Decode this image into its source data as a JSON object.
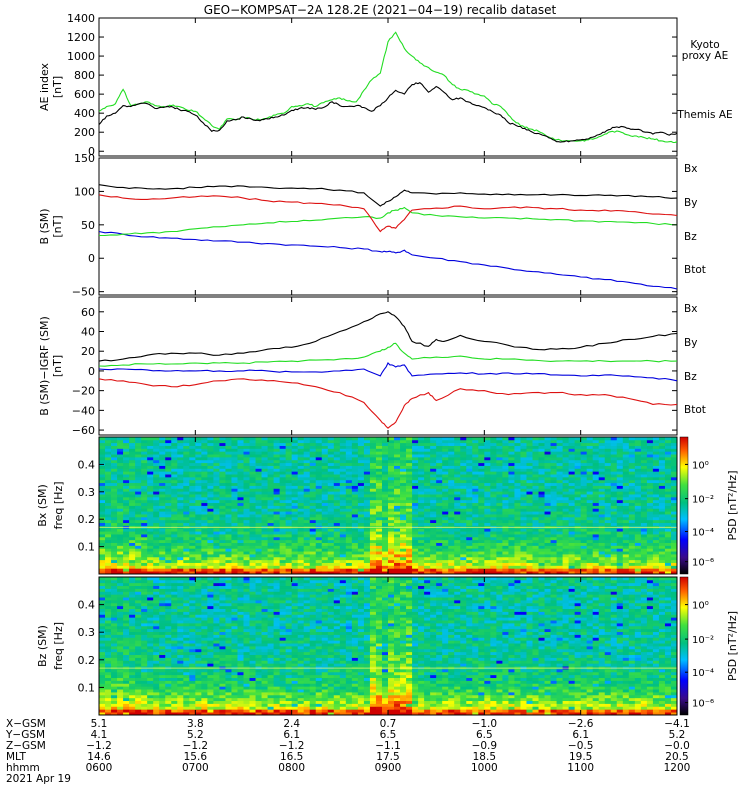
{
  "title": "GEO−KOMPSAT−2A 128.2E (2021−04−19) recalib dataset",
  "time_ticks": [
    "0600",
    "0700",
    "0800",
    "0900",
    "1000",
    "1100",
    "1200"
  ],
  "colors": {
    "black": "#000000",
    "green": "#22dd22",
    "red": "#dd1111",
    "blue": "#0000dd"
  },
  "chart_data": [
    {
      "type": "line",
      "ylabel": "AE index\n[nT]",
      "ylim": [
        -50,
        1400
      ],
      "yticks": [
        "0",
        "200",
        "400",
        "600",
        "800",
        "1000",
        "1200",
        "1400"
      ],
      "ytick_values": [
        0,
        200,
        400,
        600,
        800,
        1000,
        1200,
        1400
      ],
      "legend": [
        "Kyoto\nproxy AE",
        "Themis AE"
      ],
      "series": [
        {
          "name": "Kyoto proxy AE",
          "color": "#22dd22",
          "x": [
            6.0,
            6.08,
            6.17,
            6.25,
            6.33,
            6.42,
            6.5,
            6.58,
            6.67,
            6.75,
            6.83,
            6.92,
            7.0,
            7.08,
            7.17,
            7.25,
            7.33,
            7.42,
            7.5,
            7.58,
            7.67,
            7.75,
            7.83,
            7.92,
            8.0,
            8.08,
            8.17,
            8.25,
            8.33,
            8.42,
            8.5,
            8.58,
            8.67,
            8.75,
            8.83,
            8.92,
            9.0,
            9.08,
            9.17,
            9.25,
            9.33,
            9.42,
            9.5,
            9.58,
            9.67,
            9.75,
            9.83,
            9.92,
            10.0,
            10.08,
            10.17,
            10.25,
            10.33,
            10.42,
            10.5,
            10.58,
            10.67,
            10.75,
            10.83,
            10.92,
            11.0,
            11.08,
            11.17,
            11.25,
            11.33,
            11.42,
            11.5,
            11.58,
            11.67,
            11.75,
            11.83,
            11.92,
            12.0
          ],
          "y": [
            420,
            470,
            500,
            650,
            480,
            500,
            520,
            480,
            470,
            480,
            470,
            430,
            420,
            350,
            270,
            230,
            340,
            330,
            360,
            340,
            330,
            350,
            380,
            400,
            470,
            480,
            500,
            470,
            510,
            540,
            560,
            530,
            520,
            640,
            750,
            820,
            1150,
            1250,
            1080,
            1000,
            930,
            880,
            830,
            800,
            700,
            650,
            640,
            600,
            580,
            500,
            470,
            380,
            300,
            250,
            230,
            200,
            150,
            120,
            110,
            110,
            110,
            120,
            140,
            180,
            210,
            200,
            170,
            160,
            140,
            130,
            110,
            100,
            100
          ]
        },
        {
          "name": "Themis AE",
          "color": "#000000",
          "x": [
            6.0,
            6.08,
            6.17,
            6.25,
            6.33,
            6.42,
            6.5,
            6.58,
            6.67,
            6.75,
            6.83,
            6.92,
            7.0,
            7.08,
            7.17,
            7.25,
            7.33,
            7.42,
            7.5,
            7.58,
            7.67,
            7.75,
            7.83,
            7.92,
            8.0,
            8.08,
            8.17,
            8.25,
            8.33,
            8.42,
            8.5,
            8.58,
            8.67,
            8.75,
            8.83,
            8.92,
            9.0,
            9.08,
            9.17,
            9.25,
            9.33,
            9.42,
            9.5,
            9.58,
            9.67,
            9.75,
            9.83,
            9.92,
            10.0,
            10.08,
            10.17,
            10.25,
            10.33,
            10.42,
            10.5,
            10.58,
            10.67,
            10.75,
            10.83,
            10.92,
            11.0,
            11.08,
            11.17,
            11.25,
            11.33,
            11.42,
            11.5,
            11.58,
            11.67,
            11.75,
            11.83,
            11.92,
            12.0
          ],
          "y": [
            280,
            370,
            400,
            480,
            470,
            500,
            500,
            450,
            460,
            470,
            440,
            420,
            380,
            300,
            210,
            220,
            320,
            330,
            360,
            340,
            320,
            340,
            360,
            380,
            430,
            450,
            460,
            440,
            460,
            520,
            480,
            470,
            480,
            460,
            420,
            480,
            560,
            640,
            600,
            700,
            720,
            620,
            680,
            620,
            540,
            560,
            520,
            480,
            460,
            420,
            380,
            300,
            270,
            240,
            200,
            180,
            140,
            100,
            100,
            110,
            120,
            130,
            170,
            200,
            250,
            260,
            240,
            230,
            200,
            180,
            200,
            170,
            190
          ]
        }
      ]
    },
    {
      "type": "line",
      "ylabel": "B  (SM)\n[nT]",
      "ylim": [
        -55,
        150
      ],
      "yticks": [
        "−50",
        "0",
        "50",
        "100",
        "150"
      ],
      "ytick_values": [
        -50,
        0,
        50,
        100,
        150
      ],
      "legend": [
        "Bx",
        "By",
        "Bz",
        "Btot"
      ],
      "series": [
        {
          "name": "Bx",
          "color": "#0000dd",
          "x": [
            6.0,
            6.25,
            6.5,
            6.75,
            7.0,
            7.25,
            7.5,
            7.75,
            8.0,
            8.25,
            8.5,
            8.75,
            8.92,
            9.0,
            9.08,
            9.17,
            9.25,
            9.5,
            9.75,
            10.0,
            10.25,
            10.5,
            10.75,
            11.0,
            11.25,
            11.5,
            11.75,
            12.0
          ],
          "y": [
            40,
            36,
            32,
            30,
            28,
            26,
            24,
            22,
            20,
            18,
            16,
            14,
            10,
            10,
            8,
            12,
            5,
            0,
            -5,
            -10,
            -15,
            -20,
            -24,
            -28,
            -32,
            -36,
            -42,
            -46
          ]
        },
        {
          "name": "By",
          "color": "#22dd22",
          "x": [
            6.0,
            6.25,
            6.5,
            6.75,
            7.0,
            7.25,
            7.5,
            7.75,
            8.0,
            8.25,
            8.5,
            8.75,
            8.92,
            9.0,
            9.08,
            9.17,
            9.25,
            9.5,
            9.75,
            10.0,
            10.25,
            10.5,
            10.75,
            11.0,
            11.25,
            11.5,
            11.75,
            12.0
          ],
          "y": [
            34,
            36,
            38,
            40,
            44,
            47,
            50,
            53,
            55,
            57,
            60,
            62,
            60,
            68,
            72,
            76,
            68,
            64,
            62,
            60,
            60,
            59,
            58,
            56,
            55,
            54,
            52,
            50
          ]
        },
        {
          "name": "Bz",
          "color": "#dd1111",
          "x": [
            6.0,
            6.25,
            6.5,
            6.75,
            7.0,
            7.25,
            7.5,
            7.75,
            8.0,
            8.25,
            8.5,
            8.75,
            8.92,
            9.0,
            9.08,
            9.17,
            9.25,
            9.5,
            9.75,
            10.0,
            10.25,
            10.5,
            10.75,
            11.0,
            11.25,
            11.5,
            11.75,
            12.0
          ],
          "y": [
            95,
            90,
            88,
            90,
            92,
            93,
            90,
            86,
            84,
            82,
            80,
            74,
            40,
            48,
            45,
            58,
            72,
            75,
            78,
            74,
            76,
            76,
            74,
            72,
            72,
            70,
            66,
            64
          ]
        },
        {
          "name": "Btot",
          "color": "#000000",
          "x": [
            6.0,
            6.25,
            6.5,
            6.75,
            7.0,
            7.25,
            7.5,
            7.75,
            8.0,
            8.25,
            8.5,
            8.75,
            8.92,
            9.0,
            9.08,
            9.17,
            9.25,
            9.5,
            9.75,
            10.0,
            10.25,
            10.5,
            10.75,
            11.0,
            11.25,
            11.5,
            11.75,
            12.0
          ],
          "y": [
            110,
            106,
            104,
            104,
            106,
            108,
            108,
            106,
            105,
            104,
            102,
            98,
            78,
            85,
            92,
            102,
            98,
            96,
            98,
            96,
            96,
            95,
            95,
            94,
            94,
            94,
            92,
            90
          ]
        }
      ]
    },
    {
      "type": "line",
      "ylabel": "B (SM)−IGRF (SM)\n[nT]",
      "ylim": [
        -65,
        75
      ],
      "yticks": [
        "−60",
        "−40",
        "−20",
        "0",
        "20",
        "40",
        "60"
      ],
      "ytick_values": [
        -60,
        -40,
        -20,
        0,
        20,
        40,
        60
      ],
      "legend": [
        "Bx",
        "By",
        "Bz",
        "Btot"
      ],
      "series": [
        {
          "name": "Btot",
          "color": "#000000",
          "x": [
            6.0,
            6.25,
            6.5,
            6.75,
            7.0,
            7.25,
            7.5,
            7.75,
            8.0,
            8.25,
            8.5,
            8.75,
            8.92,
            9.0,
            9.08,
            9.17,
            9.25,
            9.42,
            9.5,
            9.58,
            9.75,
            10.0,
            10.25,
            10.5,
            10.75,
            11.0,
            11.25,
            11.5,
            11.75,
            12.0
          ],
          "y": [
            10,
            12,
            16,
            18,
            18,
            16,
            18,
            22,
            24,
            30,
            40,
            50,
            58,
            60,
            55,
            45,
            30,
            25,
            32,
            30,
            36,
            30,
            26,
            22,
            22,
            24,
            28,
            32,
            35,
            38
          ]
        },
        {
          "name": "By",
          "color": "#22dd22",
          "x": [
            6.0,
            6.25,
            6.5,
            6.75,
            7.0,
            7.25,
            7.5,
            7.75,
            8.0,
            8.25,
            8.5,
            8.75,
            8.92,
            9.0,
            9.08,
            9.17,
            9.25,
            9.5,
            9.75,
            10.0,
            10.25,
            10.5,
            10.75,
            11.0,
            11.25,
            11.5,
            11.75,
            12.0
          ],
          "y": [
            5,
            6,
            7,
            7,
            8,
            8,
            8,
            9,
            10,
            11,
            12,
            14,
            20,
            24,
            28,
            18,
            12,
            14,
            15,
            12,
            12,
            11,
            10,
            10,
            10,
            10,
            10,
            10
          ]
        },
        {
          "name": "Bx",
          "color": "#0000dd",
          "x": [
            6.0,
            6.25,
            6.5,
            6.75,
            7.0,
            7.25,
            7.5,
            7.75,
            8.0,
            8.25,
            8.5,
            8.75,
            8.92,
            9.0,
            9.08,
            9.17,
            9.25,
            9.5,
            9.75,
            10.0,
            10.25,
            10.5,
            10.75,
            11.0,
            11.25,
            11.5,
            11.75,
            12.0
          ],
          "y": [
            2,
            2,
            1,
            0,
            0,
            0,
            0,
            0,
            -1,
            -1,
            0,
            2,
            -5,
            8,
            4,
            6,
            -5,
            -3,
            -2,
            -3,
            -2,
            -3,
            -4,
            -5,
            -4,
            -5,
            -7,
            -10
          ]
        },
        {
          "name": "Bz",
          "color": "#dd1111",
          "x": [
            6.0,
            6.25,
            6.5,
            6.75,
            7.0,
            7.25,
            7.5,
            7.75,
            8.0,
            8.25,
            8.5,
            8.75,
            8.92,
            9.0,
            9.08,
            9.17,
            9.25,
            9.42,
            9.5,
            9.75,
            10.0,
            10.25,
            10.5,
            10.75,
            11.0,
            11.25,
            11.5,
            11.75,
            12.0
          ],
          "y": [
            -8,
            -10,
            -14,
            -16,
            -14,
            -10,
            -8,
            -10,
            -12,
            -16,
            -22,
            -32,
            -50,
            -58,
            -52,
            -35,
            -28,
            -22,
            -30,
            -18,
            -20,
            -24,
            -22,
            -22,
            -24,
            -24,
            -28,
            -34,
            -34
          ]
        }
      ]
    },
    {
      "type": "heatmap",
      "ylabel": "Bx (SM)\nfreq [Hz]",
      "yticks": [
        "0.1",
        "0.2",
        "0.3",
        "0.4"
      ],
      "ytick_values": [
        0.1,
        0.2,
        0.3,
        0.4
      ],
      "ylim": [
        0,
        0.5
      ],
      "colorbar_label": "PSD [nT²/Hz]",
      "colorbar_ticks": [
        "10⁰",
        "10⁻²",
        "10⁻⁴",
        "10⁻⁶"
      ]
    },
    {
      "type": "heatmap",
      "ylabel": "Bz (SM)\nfreq [Hz]",
      "yticks": [
        "0.1",
        "0.2",
        "0.3",
        "0.4"
      ],
      "ytick_values": [
        0.1,
        0.2,
        0.3,
        0.4
      ],
      "ylim": [
        0,
        0.5
      ],
      "colorbar_label": "PSD [nT²/Hz]",
      "colorbar_ticks": [
        "10⁰",
        "10⁻²",
        "10⁻⁴",
        "10⁻⁶"
      ]
    }
  ],
  "ephemeris": {
    "rows": [
      {
        "label": "X−GSM",
        "values": [
          "5.1",
          "3.8",
          "2.4",
          "0.7",
          "−1.0",
          "−2.6",
          "−4.1"
        ]
      },
      {
        "label": "Y−GSM",
        "values": [
          "4.1",
          "5.2",
          "6.1",
          "6.5",
          "6.5",
          "6.1",
          "5.2"
        ]
      },
      {
        "label": "Z−GSM",
        "values": [
          "−1.2",
          "−1.2",
          "−1.2",
          "−1.1",
          "−0.9",
          "−0.5",
          "−0.0"
        ]
      },
      {
        "label": "MLT",
        "values": [
          "14.6",
          "15.6",
          "16.5",
          "17.5",
          "18.5",
          "19.5",
          "20.5"
        ]
      },
      {
        "label": "hhmm",
        "values": [
          "0600",
          "0700",
          "0800",
          "0900",
          "1000",
          "1100",
          "1200"
        ]
      }
    ],
    "date": "2021 Apr 19"
  }
}
